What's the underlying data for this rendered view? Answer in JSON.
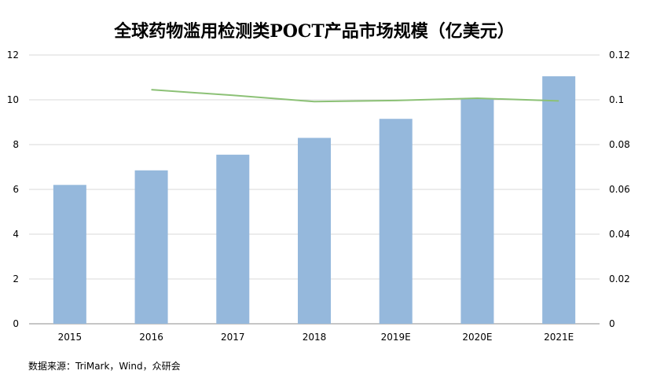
{
  "chart_data": {
    "type": "bar",
    "title": "全球药物滥用检测类POCT产品市场规模（亿美元）",
    "categories": [
      "2015",
      "2016",
      "2017",
      "2018",
      "2019E",
      "2020E",
      "2021E"
    ],
    "series": [
      {
        "type": "bar",
        "axis": "left",
        "values": [
          6.2,
          6.85,
          7.55,
          8.3,
          9.15,
          10.05,
          11.05
        ],
        "color": "#95b8dc"
      },
      {
        "type": "line",
        "axis": "right",
        "values": [
          null,
          0.1045,
          0.102,
          0.0992,
          0.0997,
          0.1007,
          0.0995
        ],
        "color": "#8cc176"
      }
    ],
    "ylim": [
      0,
      12
    ],
    "yticks": [
      "0",
      "2",
      "4",
      "6",
      "8",
      "10",
      "12"
    ],
    "y2lim": [
      0,
      0.12
    ],
    "y2ticks": [
      "0",
      "0.02",
      "0.04",
      "0.06",
      "0.08",
      "0.1",
      "0.12"
    ],
    "grid": true,
    "source": "数据来源：TriMark，Wind，众研会"
  }
}
